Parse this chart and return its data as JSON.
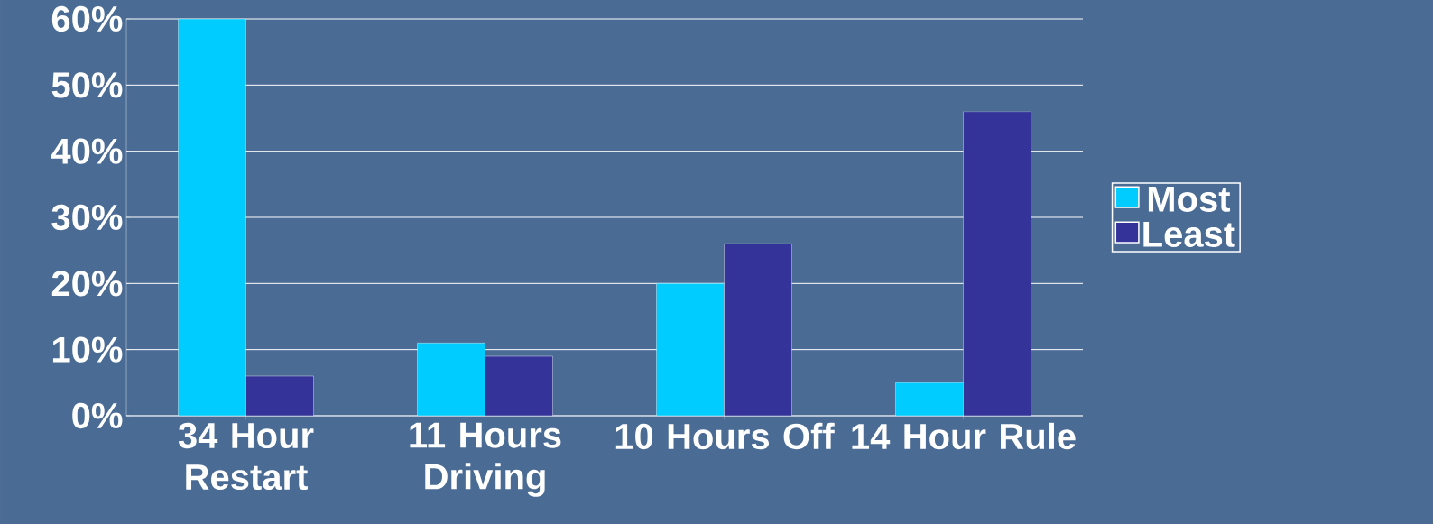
{
  "chart_data": {
    "type": "bar",
    "categories": [
      "34 Hour Restart",
      "11 Hours Driving",
      "10 Hours Off",
      "14 Hour Rule"
    ],
    "series": [
      {
        "name": "Most",
        "color": "#00ccff",
        "values": [
          60,
          11,
          20,
          5
        ]
      },
      {
        "name": "Least",
        "color": "#333399",
        "values": [
          6,
          9,
          26,
          46
        ]
      }
    ],
    "ylim": [
      0,
      60
    ],
    "yticks": [
      {
        "value": 0,
        "label": "0%"
      },
      {
        "value": 10,
        "label": "10%"
      },
      {
        "value": 20,
        "label": "20%"
      },
      {
        "value": 30,
        "label": "30%"
      },
      {
        "value": 40,
        "label": "40%"
      },
      {
        "value": 50,
        "label": "50%"
      },
      {
        "value": 60,
        "label": "60%"
      }
    ],
    "grid": "y",
    "legend": "right"
  }
}
